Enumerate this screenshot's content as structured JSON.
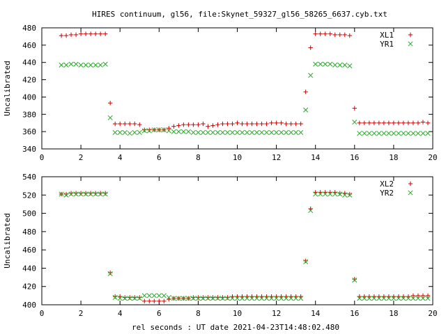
{
  "title": "HIRES continuum, gl56, file:Skynet_59327_gl56_58265_6637.cyb.txt",
  "xlabel": "rel seconds : UT date 2021-04-23T14:48:02.480",
  "colors": {
    "series_a": "#cc0000",
    "series_b": "#22aa22",
    "axis": "#000000"
  },
  "chart_data": [
    {
      "type": "scatter",
      "ylabel": "Uncalibrated",
      "xlim": [
        0,
        20
      ],
      "ylim": [
        340,
        480
      ],
      "xticks": [
        0,
        2,
        4,
        6,
        8,
        10,
        12,
        14,
        16,
        18,
        20
      ],
      "yticks": [
        340,
        360,
        380,
        400,
        420,
        440,
        460,
        480
      ],
      "legend_position": "top-right",
      "grid": false,
      "series": [
        {
          "name": "XL1",
          "marker": "+",
          "color": "#cc0000",
          "x": [
            1.0,
            1.25,
            1.5,
            1.75,
            2.0,
            2.25,
            2.5,
            2.75,
            3.0,
            3.25,
            3.5,
            3.75,
            4.0,
            4.25,
            4.5,
            4.75,
            5.0,
            5.25,
            5.5,
            5.75,
            6.0,
            6.25,
            6.5,
            6.75,
            7.0,
            7.25,
            7.5,
            7.75,
            8.0,
            8.25,
            8.5,
            8.75,
            9.0,
            9.25,
            9.5,
            9.75,
            10.0,
            10.25,
            10.5,
            10.75,
            11.0,
            11.25,
            11.5,
            11.75,
            12.0,
            12.25,
            12.5,
            12.75,
            13.0,
            13.25,
            13.5,
            13.75,
            14.0,
            14.25,
            14.5,
            14.75,
            15.0,
            15.25,
            15.5,
            15.75,
            16.0,
            16.25,
            16.5,
            16.75,
            17.0,
            17.25,
            17.5,
            17.75,
            18.0,
            18.25,
            18.5,
            18.75,
            19.0,
            19.25,
            19.5,
            19.75
          ],
          "y": [
            471,
            471,
            472,
            472,
            473,
            473,
            473,
            473,
            473,
            473,
            393,
            369,
            369,
            369,
            369,
            369,
            368,
            362,
            362,
            362,
            362,
            362,
            364,
            366,
            367,
            368,
            368,
            368,
            368,
            369,
            366,
            367,
            368,
            369,
            369,
            369,
            370,
            369,
            369,
            369,
            369,
            369,
            369,
            370,
            370,
            370,
            369,
            369,
            369,
            369,
            406,
            457,
            473,
            473,
            473,
            473,
            472,
            472,
            472,
            471,
            387,
            370,
            370,
            370,
            370,
            370,
            370,
            370,
            370,
            370,
            370,
            370,
            370,
            370,
            371,
            370
          ]
        },
        {
          "name": "YR1",
          "marker": "x",
          "color": "#22aa22",
          "x": [
            1.0,
            1.25,
            1.5,
            1.75,
            2.0,
            2.25,
            2.5,
            2.75,
            3.0,
            3.25,
            3.5,
            3.75,
            4.0,
            4.25,
            4.5,
            4.75,
            5.0,
            5.25,
            5.5,
            5.75,
            6.0,
            6.25,
            6.5,
            6.75,
            7.0,
            7.25,
            7.5,
            7.75,
            8.0,
            8.25,
            8.5,
            8.75,
            9.0,
            9.25,
            9.5,
            9.75,
            10.0,
            10.25,
            10.5,
            10.75,
            11.0,
            11.25,
            11.5,
            11.75,
            12.0,
            12.25,
            12.5,
            12.75,
            13.0,
            13.25,
            13.5,
            13.75,
            14.0,
            14.25,
            14.5,
            14.75,
            15.0,
            15.25,
            15.5,
            15.75,
            16.0,
            16.25,
            16.5,
            16.75,
            17.0,
            17.25,
            17.5,
            17.75,
            18.0,
            18.25,
            18.5,
            18.75,
            19.0,
            19.25,
            19.5,
            19.75
          ],
          "y": [
            437,
            437,
            438,
            438,
            437,
            437,
            437,
            437,
            437,
            438,
            376,
            359,
            359,
            359,
            358,
            359,
            359,
            361,
            361,
            362,
            362,
            362,
            361,
            360,
            360,
            360,
            360,
            359,
            359,
            359,
            359,
            359,
            359,
            359,
            359,
            359,
            359,
            359,
            359,
            359,
            359,
            359,
            359,
            359,
            359,
            359,
            359,
            359,
            359,
            359,
            385,
            425,
            438,
            438,
            438,
            438,
            437,
            437,
            437,
            436,
            371,
            358,
            358,
            358,
            358,
            358,
            358,
            358,
            358,
            358,
            358,
            358,
            358,
            358,
            358,
            358
          ]
        }
      ]
    },
    {
      "type": "scatter",
      "ylabel": "Uncalibrated",
      "xlim": [
        0,
        20
      ],
      "ylim": [
        400,
        540
      ],
      "xticks": [
        0,
        2,
        4,
        6,
        8,
        10,
        12,
        14,
        16,
        18,
        20
      ],
      "yticks": [
        400,
        420,
        440,
        460,
        480,
        500,
        520,
        540
      ],
      "legend_position": "top-right",
      "grid": false,
      "series": [
        {
          "name": "XL2",
          "marker": "+",
          "color": "#cc0000",
          "x": [
            1.0,
            1.25,
            1.5,
            1.75,
            2.0,
            2.25,
            2.5,
            2.75,
            3.0,
            3.25,
            3.5,
            3.75,
            4.0,
            4.25,
            4.5,
            4.75,
            5.0,
            5.25,
            5.5,
            5.75,
            6.0,
            6.25,
            6.5,
            6.75,
            7.0,
            7.25,
            7.5,
            7.75,
            8.0,
            8.25,
            8.5,
            8.75,
            9.0,
            9.25,
            9.5,
            9.75,
            10.0,
            10.25,
            10.5,
            10.75,
            11.0,
            11.25,
            11.5,
            11.75,
            12.0,
            12.25,
            12.5,
            12.75,
            13.0,
            13.25,
            13.5,
            13.75,
            14.0,
            14.25,
            14.5,
            14.75,
            15.0,
            15.25,
            15.5,
            15.75,
            16.0,
            16.25,
            16.5,
            16.75,
            17.0,
            17.25,
            17.5,
            17.75,
            18.0,
            18.25,
            18.5,
            18.75,
            19.0,
            19.25,
            19.5,
            19.75
          ],
          "y": [
            521,
            521,
            522,
            522,
            522,
            522,
            522,
            522,
            522,
            522,
            435,
            409,
            409,
            408,
            408,
            408,
            408,
            404,
            404,
            404,
            404,
            404,
            406,
            407,
            407,
            407,
            407,
            408,
            408,
            408,
            408,
            408,
            408,
            408,
            408,
            409,
            409,
            409,
            409,
            409,
            409,
            409,
            409,
            409,
            409,
            409,
            409,
            409,
            409,
            409,
            448,
            505,
            523,
            523,
            523,
            523,
            523,
            522,
            522,
            521,
            428,
            409,
            409,
            409,
            409,
            409,
            409,
            409,
            409,
            409,
            409,
            409,
            410,
            410,
            410,
            410
          ]
        },
        {
          "name": "YR2",
          "marker": "x",
          "color": "#22aa22",
          "x": [
            1.0,
            1.25,
            1.5,
            1.75,
            2.0,
            2.25,
            2.5,
            2.75,
            3.0,
            3.25,
            3.5,
            3.75,
            4.0,
            4.25,
            4.5,
            4.75,
            5.0,
            5.25,
            5.5,
            5.75,
            6.0,
            6.25,
            6.5,
            6.75,
            7.0,
            7.25,
            7.5,
            7.75,
            8.0,
            8.25,
            8.5,
            8.75,
            9.0,
            9.25,
            9.5,
            9.75,
            10.0,
            10.25,
            10.5,
            10.75,
            11.0,
            11.25,
            11.5,
            11.75,
            12.0,
            12.25,
            12.5,
            12.75,
            13.0,
            13.25,
            13.5,
            13.75,
            14.0,
            14.25,
            14.5,
            14.75,
            15.0,
            15.25,
            15.5,
            15.75,
            16.0,
            16.25,
            16.5,
            16.75,
            17.0,
            17.25,
            17.5,
            17.75,
            18.0,
            18.25,
            18.5,
            18.75,
            19.0,
            19.25,
            19.5,
            19.75
          ],
          "y": [
            521,
            520,
            521,
            521,
            521,
            521,
            521,
            521,
            521,
            521,
            434,
            408,
            407,
            407,
            407,
            407,
            407,
            410,
            410,
            410,
            410,
            410,
            408,
            407,
            407,
            407,
            407,
            407,
            407,
            407,
            407,
            407,
            407,
            407,
            407,
            407,
            407,
            407,
            407,
            407,
            407,
            407,
            407,
            407,
            407,
            407,
            407,
            407,
            407,
            407,
            447,
            503,
            521,
            521,
            521,
            521,
            521,
            521,
            520,
            520,
            427,
            407,
            407,
            407,
            407,
            407,
            407,
            407,
            407,
            407,
            407,
            407,
            407,
            407,
            407,
            407
          ]
        }
      ]
    }
  ]
}
